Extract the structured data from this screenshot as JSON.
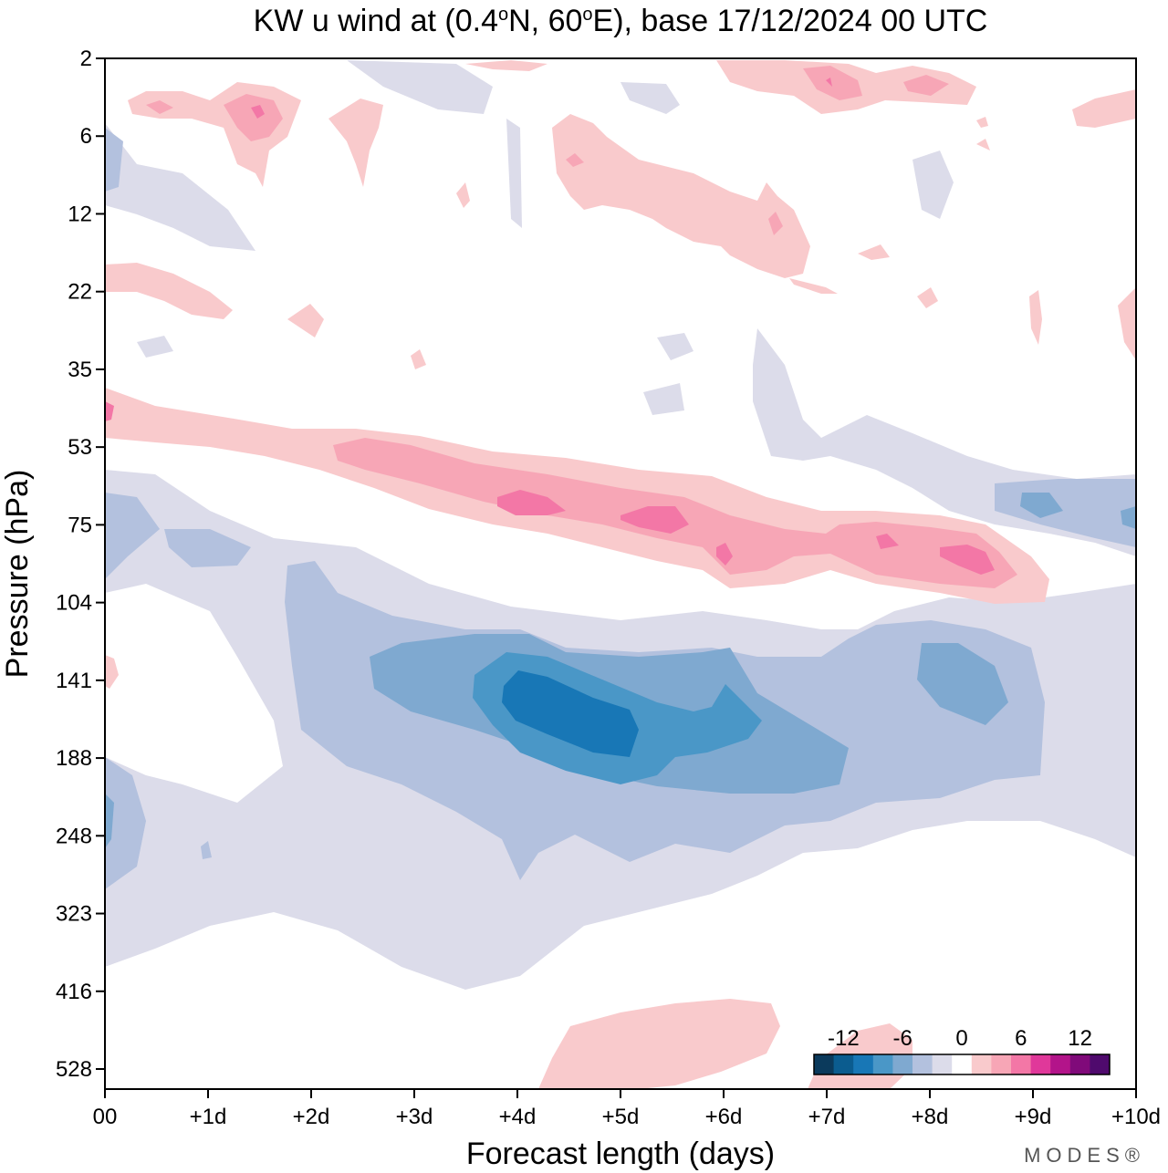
{
  "chart_data": {
    "type": "heatmap",
    "title": "KW u wind at (0.4°N, 60°E),  base 17/12/2024  00 UTC",
    "title_parts": {
      "pre": "KW u wind at (0.4",
      "deg1": "o",
      "mid": "N, 60",
      "deg2": "o",
      "post": "E),  base 17/12/2024  00 UTC"
    },
    "xlabel": "Forecast length (days)",
    "ylabel": "Pressure (hPa)",
    "x_ticks": [
      "00",
      "+1d",
      "+2d",
      "+3d",
      "+4d",
      "+5d",
      "+6d",
      "+7d",
      "+8d",
      "+9d",
      "+10d"
    ],
    "y_ticks": [
      "2",
      "6",
      "12",
      "22",
      "35",
      "53",
      "75",
      "104",
      "141",
      "188",
      "248",
      "323",
      "416",
      "528"
    ],
    "xlim_days": [
      0,
      10
    ],
    "colorbar": {
      "labels": [
        "-12",
        "-6",
        "0",
        "6",
        "12"
      ],
      "levels": [
        -14,
        -12,
        -10,
        -8,
        -6,
        -4,
        -2,
        2,
        4,
        6,
        8,
        10,
        12,
        14
      ],
      "colors": [
        "#0b3a5c",
        "#0b5c8f",
        "#1877b6",
        "#4a97c7",
        "#7fa9d0",
        "#b3c1de",
        "#dcdcea",
        "#ffffff",
        "#f9cacc",
        "#f7a6b6",
        "#f377a6",
        "#e0389a",
        "#b3148a",
        "#800a7a",
        "#4f0a6d"
      ]
    },
    "features": [
      {
        "sign": "negative",
        "level": -12,
        "center_day": 4.8,
        "center_hpa": 160,
        "desc": "strongest easterly core"
      },
      {
        "sign": "negative",
        "level": -6,
        "center_day": 5.0,
        "center_hpa": 165,
        "desc": "broad easterly band 100-330 hPa"
      },
      {
        "sign": "positive",
        "level": 6,
        "center_day": 4.5,
        "center_hpa": 75,
        "desc": "westerly band descending 53-104 hPa"
      },
      {
        "sign": "positive",
        "level": 4,
        "center_day": 1.5,
        "center_hpa": 5,
        "desc": "upper westerly patches"
      },
      {
        "sign": "positive",
        "level": 2,
        "center_day": 5.5,
        "center_hpa": 528,
        "desc": "lower westerly patch"
      }
    ]
  },
  "branding": {
    "logo": "MODES®"
  }
}
